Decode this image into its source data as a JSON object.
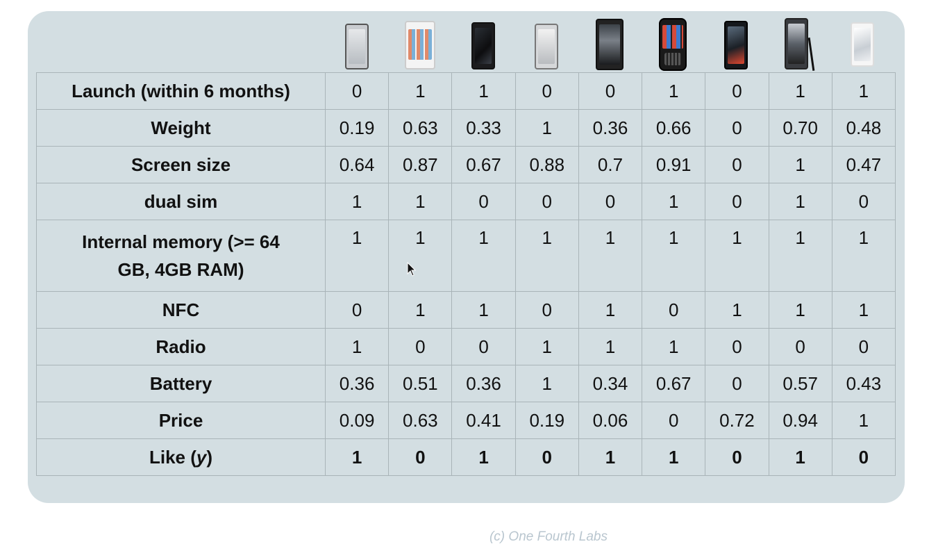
{
  "table": {
    "rows": [
      {
        "label": "Launch (within 6 months)",
        "values": [
          "0",
          "1",
          "1",
          "0",
          "0",
          "1",
          "0",
          "1",
          "1"
        ]
      },
      {
        "label": "Weight",
        "values": [
          "0.19",
          "0.63",
          "0.33",
          "1",
          "0.36",
          "0.66",
          "0",
          "0.70",
          "0.48"
        ]
      },
      {
        "label": "Screen size",
        "values": [
          "0.64",
          "0.87",
          "0.67",
          "0.88",
          "0.7",
          "0.91",
          "0",
          "1",
          "0.47"
        ]
      },
      {
        "label": "dual sim",
        "values": [
          "1",
          "1",
          "0",
          "0",
          "0",
          "1",
          "0",
          "1",
          "0"
        ]
      },
      {
        "label_line1": "Internal memory (>= 64",
        "label_line2": "GB, 4GB RAM)",
        "values": [
          "1",
          "1",
          "1",
          "1",
          "1",
          "1",
          "1",
          "1",
          "1"
        ]
      },
      {
        "label": "NFC",
        "values": [
          "0",
          "1",
          "1",
          "0",
          "1",
          "0",
          "1",
          "1",
          "1"
        ]
      },
      {
        "label": "Radio",
        "values": [
          "1",
          "0",
          "0",
          "1",
          "1",
          "1",
          "0",
          "0",
          "0"
        ]
      },
      {
        "label": "Battery",
        "values": [
          "0.36",
          "0.51",
          "0.36",
          "1",
          "0.34",
          "0.67",
          "0",
          "0.57",
          "0.43"
        ]
      },
      {
        "label": "Price",
        "values": [
          "0.09",
          "0.63",
          "0.41",
          "0.19",
          "0.06",
          "0",
          "0.72",
          "0.94",
          "1"
        ]
      },
      {
        "label_main": "Like (",
        "label_var": "y",
        "label_end": ")",
        "values": [
          "1",
          "0",
          "1",
          "0",
          "1",
          "1",
          "0",
          "1",
          "0"
        ]
      }
    ]
  },
  "phones": [
    {
      "icon": "phone-silver-icon"
    },
    {
      "icon": "phone-iphone-white-icon"
    },
    {
      "icon": "phone-black-icon"
    },
    {
      "icon": "phone-gray-icon"
    },
    {
      "icon": "phone-dark-wide-icon"
    },
    {
      "icon": "phone-qwerty-icon"
    },
    {
      "icon": "phone-oneplus-icon"
    },
    {
      "icon": "phone-note-with-stylus-icon"
    },
    {
      "icon": "phone-white-icon"
    }
  ],
  "footer": "(c) One Fourth Labs",
  "colors": {
    "panel": "#d3dee2",
    "grid": "#a9b4b8",
    "footer": "#b9c6cf"
  }
}
